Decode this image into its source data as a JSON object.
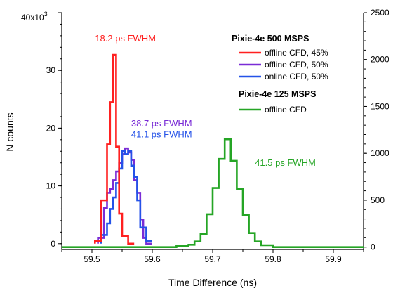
{
  "chart_data": {
    "type": "line",
    "step": true,
    "xlabel": "Time Difference (ns)",
    "ylabel": "N counts",
    "xlim": [
      59.45,
      59.95
    ],
    "ylim_left": [
      -1,
      40
    ],
    "ylim_right": [
      -25,
      2500
    ],
    "y_left_multiplier_label": "40x10",
    "y_left_multiplier_exp": "3",
    "x_ticks": [
      "59.5",
      "59.6",
      "59.7",
      "59.8",
      "59.9"
    ],
    "x_tick_values": [
      59.5,
      59.6,
      59.7,
      59.8,
      59.9
    ],
    "y_left_ticks": [
      "0",
      "10",
      "20",
      "30"
    ],
    "y_left_tick_values": [
      0,
      10,
      20,
      30
    ],
    "y_right_ticks": [
      "0",
      "500",
      "1000",
      "1500",
      "2000",
      "2500"
    ],
    "y_right_tick_values": [
      0,
      500,
      1000,
      1500,
      2000,
      2500
    ],
    "legend": {
      "group1_title": "Pixie-4e 500 MSPS",
      "group2_title": "Pixie-4e 125 MSPS"
    },
    "series": [
      {
        "name": "offline CFD, 45%",
        "color": "#ff2020",
        "axis": "left",
        "bin_edges": [
          59.505,
          59.515,
          59.525,
          59.53,
          59.535,
          59.54,
          59.545,
          59.55,
          59.56,
          59.57
        ],
        "counts": [
          0.5,
          7.5,
          17.2,
          24.5,
          32.7,
          16.8,
          5.2,
          1.3,
          0
        ]
      },
      {
        "name": "offline CFD, 50%",
        "color": "#7a2cd6",
        "axis": "left",
        "bin_edges": [
          59.51,
          59.52,
          59.525,
          59.53,
          59.535,
          59.54,
          59.545,
          59.55,
          59.555,
          59.56,
          59.565,
          59.57,
          59.575,
          59.58,
          59.585,
          59.59,
          59.6
        ],
        "counts": [
          1.0,
          6.2,
          8.8,
          9.5,
          11.0,
          12.5,
          14.0,
          15.5,
          16.5,
          15.8,
          14.5,
          11.0,
          8.8,
          4.2,
          1.0,
          0
        ]
      },
      {
        "name": "online CFD, 50%",
        "color": "#2452e8",
        "axis": "left",
        "bin_edges": [
          59.515,
          59.525,
          59.53,
          59.535,
          59.54,
          59.545,
          59.55,
          59.555,
          59.56,
          59.565,
          59.57,
          59.575,
          59.58,
          59.59,
          59.6
        ],
        "counts": [
          1.5,
          3.5,
          6.0,
          8.0,
          10.5,
          13.0,
          16.0,
          15.5,
          16.0,
          13.5,
          11.5,
          7.5,
          2.8,
          0.5
        ]
      },
      {
        "name": "offline CFD",
        "color": "#25a525",
        "axis": "right",
        "bin_edges": [
          59.6,
          59.64,
          59.66,
          59.67,
          59.68,
          59.69,
          59.7,
          59.71,
          59.72,
          59.73,
          59.74,
          59.75,
          59.76,
          59.77,
          59.78,
          59.8,
          59.95
        ],
        "counts": [
          0,
          10,
          25,
          60,
          140,
          350,
          630,
          940,
          1150,
          920,
          620,
          340,
          150,
          60,
          20,
          0
        ]
      }
    ],
    "annotations": [
      {
        "text": "18.2 ps FWHM",
        "series": 0,
        "x": 59.505,
        "y_left": 35.0
      },
      {
        "text": "38.7 ps FWHM",
        "series": 1,
        "x": 59.565,
        "y_left": 20.3
      },
      {
        "text": "41.1 ps FWHM",
        "series": 2,
        "x": 59.565,
        "y_left": 18.4
      },
      {
        "text": "41.5 ps FWHM",
        "series": 3,
        "x": 59.77,
        "y_left": 13.5
      }
    ]
  }
}
